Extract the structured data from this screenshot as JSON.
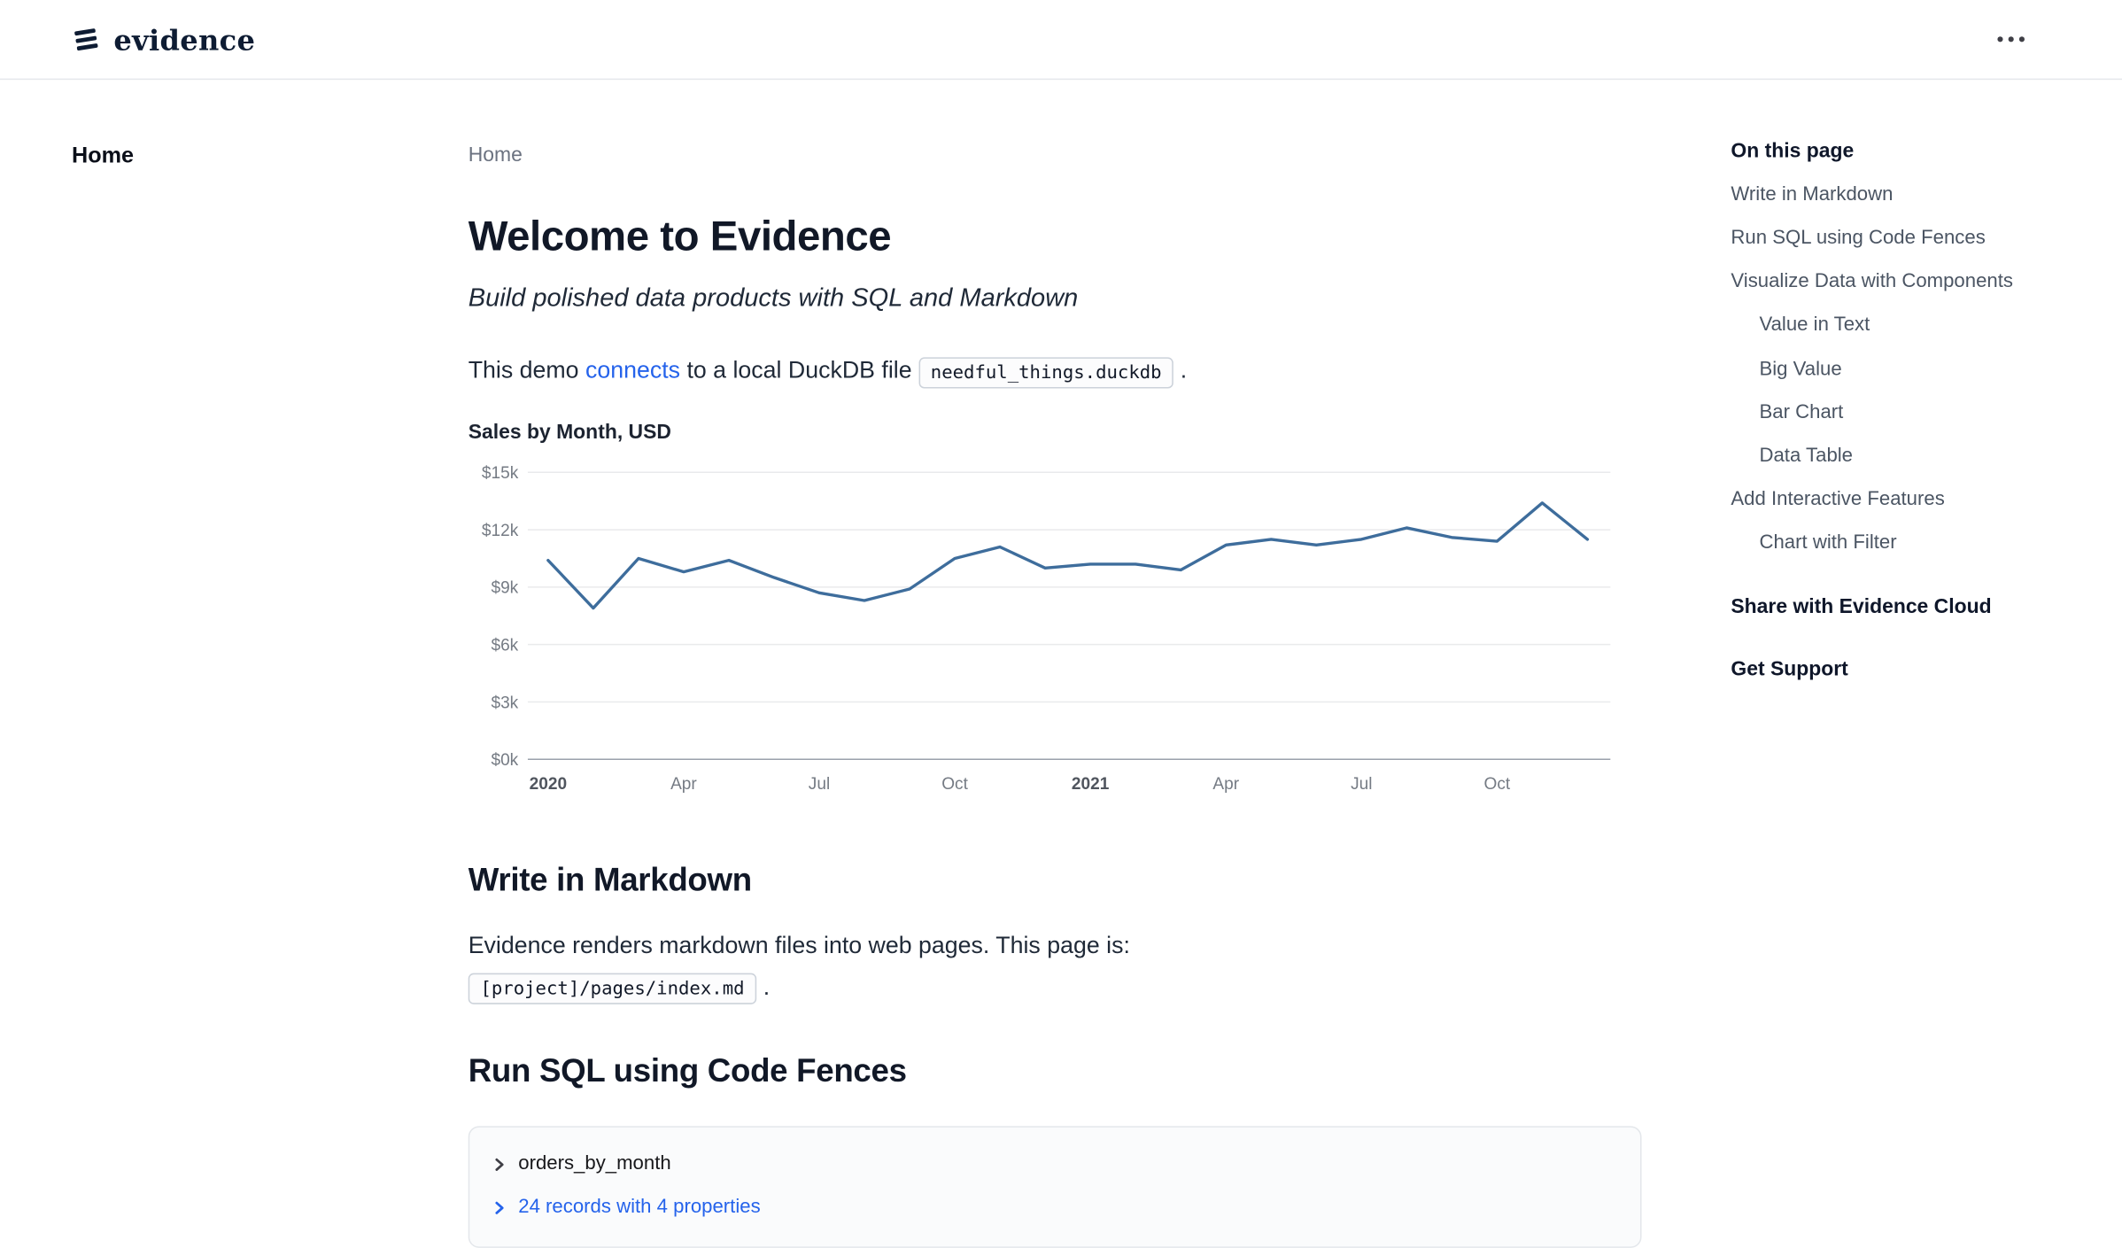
{
  "header": {
    "logo_text": "evidence"
  },
  "nav": {
    "items": [
      {
        "label": "Home"
      }
    ]
  },
  "main": {
    "breadcrumb": "Home",
    "title": "Welcome to Evidence",
    "subtitle": "Build polished data products with SQL and Markdown",
    "intro": {
      "text_start": "This demo ",
      "link": "connects",
      "text_mid": " to a local DuckDB file ",
      "code": "needful_things.duckdb",
      "text_end": " ."
    },
    "markdown_section": {
      "heading": "Write in Markdown",
      "body": "Evidence renders markdown files into web pages. This page is:",
      "code": "[project]/pages/index.md",
      "text_end": " ."
    },
    "sql_section": {
      "heading": "Run SQL using Code Fences",
      "query_name": "orders_by_month",
      "records_link": "24 records with 4 properties"
    }
  },
  "chart_data": {
    "type": "line",
    "title": "Sales by Month, USD",
    "unit": "USD thousands",
    "x": [
      "Jan 2020",
      "Feb 2020",
      "Mar 2020",
      "Apr 2020",
      "May 2020",
      "Jun 2020",
      "Jul 2020",
      "Aug 2020",
      "Sep 2020",
      "Oct 2020",
      "Nov 2020",
      "Dec 2020",
      "Jan 2021",
      "Feb 2021",
      "Mar 2021",
      "Apr 2021",
      "May 2021",
      "Jun 2021",
      "Jul 2021",
      "Aug 2021",
      "Sep 2021",
      "Oct 2021",
      "Nov 2021",
      "Dec 2021"
    ],
    "values": [
      10.4,
      7.9,
      10.5,
      9.8,
      10.4,
      9.5,
      8.7,
      8.3,
      8.9,
      10.5,
      11.1,
      10.0,
      10.2,
      10.2,
      9.9,
      11.2,
      11.5,
      11.2,
      11.5,
      12.1,
      11.6,
      11.4,
      13.4,
      11.5
    ],
    "xlabel": "",
    "ylabel": "",
    "ylim": [
      0,
      15
    ],
    "grid": true,
    "legend": false,
    "line_color": "#3e6d9c",
    "y_ticks": {
      "values": [
        0,
        3,
        6,
        9,
        12,
        15
      ],
      "labels": [
        "$0k",
        "$3k",
        "$6k",
        "$9k",
        "$12k",
        "$15k"
      ]
    },
    "x_ticks": [
      {
        "index": 0,
        "label": "2020",
        "bold": true
      },
      {
        "index": 3,
        "label": "Apr",
        "bold": false
      },
      {
        "index": 6,
        "label": "Jul",
        "bold": false
      },
      {
        "index": 9,
        "label": "Oct",
        "bold": false
      },
      {
        "index": 12,
        "label": "2021",
        "bold": true
      },
      {
        "index": 15,
        "label": "Apr",
        "bold": false
      },
      {
        "index": 18,
        "label": "Jul",
        "bold": false
      },
      {
        "index": 21,
        "label": "Oct",
        "bold": false
      }
    ]
  },
  "toc": {
    "title": "On this page",
    "items": [
      {
        "label": "Write in Markdown",
        "indent": 0
      },
      {
        "label": "Run SQL using Code Fences",
        "indent": 0
      },
      {
        "label": "Visualize Data with Components",
        "indent": 0
      },
      {
        "label": "Value in Text",
        "indent": 1
      },
      {
        "label": "Big Value",
        "indent": 1
      },
      {
        "label": "Bar Chart",
        "indent": 1
      },
      {
        "label": "Data Table",
        "indent": 1
      },
      {
        "label": "Add Interactive Features",
        "indent": 0
      },
      {
        "label": "Chart with Filter",
        "indent": 1
      }
    ],
    "links": [
      {
        "label": "Share with Evidence Cloud"
      },
      {
        "label": "Get Support"
      }
    ]
  }
}
